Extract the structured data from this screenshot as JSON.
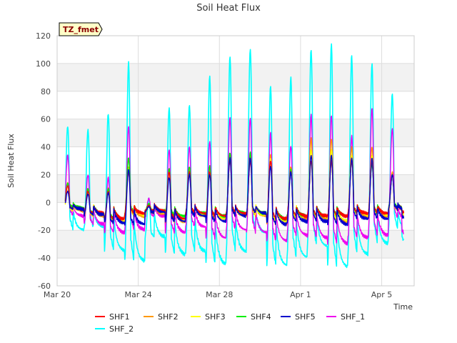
{
  "chart_data": {
    "type": "line",
    "title": "Soil Heat Flux",
    "xlabel": "Time",
    "ylabel": "Soil Heat Flux",
    "site_label": "TZ_fmet",
    "xlim": [
      0,
      17.6
    ],
    "ylim": [
      -60,
      120
    ],
    "yticks": [
      -60,
      -40,
      -20,
      0,
      20,
      40,
      60,
      80,
      100,
      120
    ],
    "xticks": [
      {
        "day": 0,
        "label": "Mar 20"
      },
      {
        "day": 4,
        "label": "Mar 24"
      },
      {
        "day": 8,
        "label": "Mar 28"
      },
      {
        "day": 12,
        "label": "Apr 1"
      },
      {
        "day": 16,
        "label": "Apr 5"
      }
    ],
    "x_start_day": 0.4,
    "x_end_day": 17.1,
    "samples_per_day": 48,
    "grid": true,
    "legend_position": "bottom",
    "series": [
      {
        "name": "SHF1",
        "color": "#ff0000",
        "peaks": [
          12,
          8,
          8,
          22,
          -2,
          22,
          22,
          22,
          30,
          30,
          30,
          22,
          30,
          30,
          30,
          30,
          20
        ],
        "troughs": [
          -5,
          -8,
          -12,
          -8,
          -6,
          -12,
          -8,
          -10,
          -8,
          -8,
          -12,
          -10,
          -10,
          -10,
          -8,
          -8,
          -5
        ]
      },
      {
        "name": "SHF2",
        "color": "#ff9900",
        "peaks": [
          14,
          10,
          10,
          26,
          -2,
          24,
          24,
          24,
          34,
          34,
          34,
          26,
          46,
          46,
          40,
          40,
          22
        ],
        "troughs": [
          -6,
          -10,
          -14,
          -10,
          -8,
          -14,
          -10,
          -12,
          -10,
          -10,
          -16,
          -12,
          -12,
          -14,
          -10,
          -10,
          -6
        ]
      },
      {
        "name": "SHF3",
        "color": "#ffff00",
        "peaks": [
          12,
          9,
          9,
          24,
          -2,
          22,
          22,
          22,
          32,
          32,
          32,
          24,
          38,
          38,
          34,
          34,
          20
        ],
        "troughs": [
          -6,
          -9,
          -13,
          -9,
          -7,
          -13,
          -9,
          -11,
          -9,
          -9,
          -14,
          -11,
          -11,
          -13,
          -9,
          -9,
          -6
        ]
      },
      {
        "name": "SHF4",
        "color": "#00ee00",
        "peaks": [
          14,
          10,
          10,
          32,
          -1,
          24,
          26,
          26,
          36,
          36,
          30,
          24,
          30,
          30,
          30,
          28,
          20
        ],
        "troughs": [
          -4,
          -8,
          -12,
          -8,
          -6,
          -10,
          -8,
          -10,
          -8,
          -8,
          -12,
          -10,
          -10,
          -10,
          -8,
          -8,
          -4
        ]
      },
      {
        "name": "SHF5",
        "color": "#0000cc",
        "peaks": [
          8,
          6,
          7,
          24,
          -3,
          18,
          20,
          20,
          32,
          32,
          26,
          22,
          34,
          34,
          32,
          32,
          20
        ],
        "troughs": [
          -5,
          -9,
          -15,
          -16,
          -7,
          -14,
          -10,
          -14,
          -10,
          -8,
          -16,
          -14,
          -14,
          -16,
          -12,
          -12,
          -5
        ]
      },
      {
        "name": "SHF_1",
        "color": "#ee00ee",
        "peaks": [
          34,
          20,
          18,
          55,
          3,
          38,
          40,
          44,
          61,
          61,
          50,
          41,
          63,
          63,
          48,
          68,
          53
        ],
        "troughs": [
          -10,
          -16,
          -22,
          -20,
          -10,
          -22,
          -18,
          -26,
          -20,
          -22,
          -28,
          -24,
          -26,
          -30,
          -26,
          -24,
          -12
        ]
      },
      {
        "name": "SHF_2",
        "color": "#00ffff",
        "peaks": [
          55,
          52,
          64,
          101,
          3,
          68,
          70,
          91,
          105,
          110,
          84,
          90,
          110,
          114,
          106,
          100,
          78
        ],
        "troughs": [
          -20,
          -18,
          -35,
          -43,
          -25,
          -38,
          -36,
          -45,
          -36,
          -22,
          -46,
          -40,
          -32,
          -47,
          -38,
          -30,
          -20
        ]
      }
    ]
  }
}
